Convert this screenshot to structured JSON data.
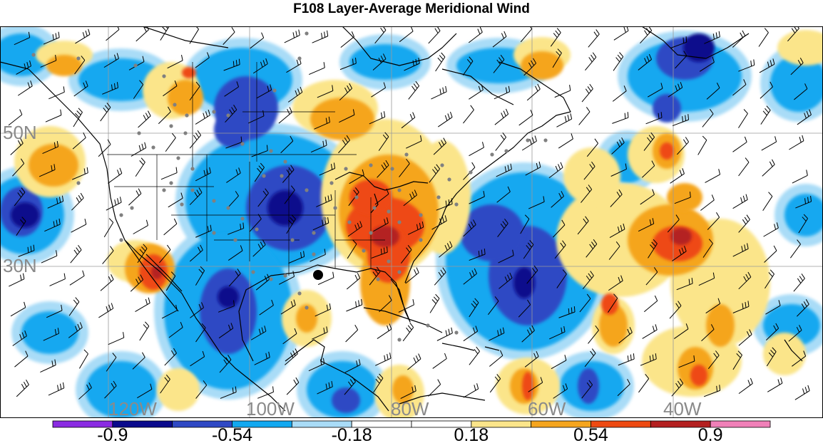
{
  "title": "F108 Layer-Average Meridional Wind",
  "lat_labels": [
    "50N",
    "30N"
  ],
  "lon_labels": [
    "120W",
    "100W",
    "80W",
    "60W",
    "40W"
  ],
  "colorbar": {
    "colors": [
      "#8a2be2",
      "#0a0a8c",
      "#2f49c4",
      "#12a8f0",
      "#a9dcf7",
      "#ffffff",
      "#ffffff",
      "#fbe58a",
      "#f5a51e",
      "#ee4a12",
      "#b42020",
      "#f080b8"
    ],
    "tick_labels": [
      "-0.9",
      "-0.54",
      "-0.18",
      "0.18",
      "0.54",
      "0.9"
    ]
  },
  "map_colors": {
    "land_outline": "#000000",
    "gridline": "#9a9a9a",
    "station_dot": "#808080",
    "marker": "#000000"
  }
}
